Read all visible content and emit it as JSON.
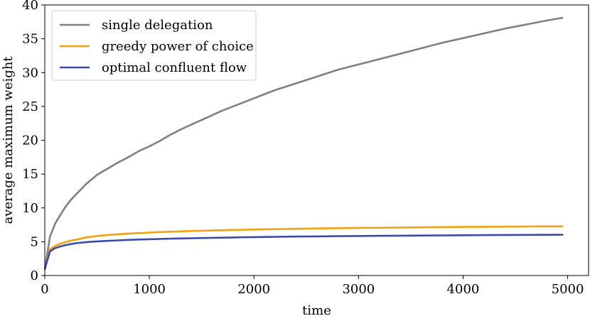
{
  "chart_data": {
    "type": "line",
    "xlabel": "time",
    "ylabel": "average maximum weight",
    "xlim": [
      0,
      5200
    ],
    "ylim": [
      0,
      40
    ],
    "xticks": [
      0,
      1000,
      2000,
      3000,
      4000,
      5000
    ],
    "yticks": [
      0,
      5,
      10,
      15,
      20,
      25,
      30,
      35,
      40
    ],
    "grid": false,
    "legend_position": "top-left",
    "x": [
      1,
      50,
      100,
      150,
      200,
      250,
      300,
      400,
      500,
      600,
      700,
      800,
      900,
      1000,
      1100,
      1200,
      1300,
      1400,
      1500,
      1600,
      1700,
      1800,
      1900,
      2000,
      2200,
      2400,
      2600,
      2800,
      3000,
      3200,
      3400,
      3600,
      3800,
      4000,
      4200,
      4400,
      4600,
      4800,
      4950
    ],
    "series": [
      {
        "name": "single delegation",
        "color": "#808080",
        "values": [
          1.0,
          5.8,
          7.7,
          9.0,
          10.2,
          11.2,
          12.0,
          13.6,
          14.9,
          15.8,
          16.7,
          17.5,
          18.4,
          19.1,
          19.9,
          20.8,
          21.6,
          22.3,
          23.0,
          23.7,
          24.4,
          25.0,
          25.6,
          26.2,
          27.4,
          28.4,
          29.4,
          30.4,
          31.2,
          32.0,
          32.8,
          33.6,
          34.4,
          35.1,
          35.8,
          36.5,
          37.1,
          37.7,
          38.1
        ]
      },
      {
        "name": "greedy power of choice",
        "color": "#f5a00f",
        "values": [
          1.0,
          3.9,
          4.4,
          4.7,
          4.95,
          5.15,
          5.3,
          5.65,
          5.85,
          6.0,
          6.1,
          6.2,
          6.28,
          6.35,
          6.42,
          6.48,
          6.53,
          6.58,
          6.62,
          6.66,
          6.7,
          6.74,
          6.77,
          6.8,
          6.86,
          6.91,
          6.96,
          7.0,
          7.04,
          7.07,
          7.1,
          7.13,
          7.16,
          7.18,
          7.2,
          7.22,
          7.24,
          7.26,
          7.27
        ]
      },
      {
        "name": "optimal confluent flow",
        "color": "#3a4aaa",
        "values": [
          1.0,
          3.6,
          4.05,
          4.3,
          4.5,
          4.65,
          4.78,
          4.95,
          5.05,
          5.12,
          5.2,
          5.27,
          5.32,
          5.37,
          5.41,
          5.45,
          5.48,
          5.51,
          5.54,
          5.57,
          5.6,
          5.63,
          5.66,
          5.68,
          5.72,
          5.76,
          5.79,
          5.82,
          5.85,
          5.87,
          5.89,
          5.91,
          5.93,
          5.95,
          5.97,
          5.99,
          6.01,
          6.02,
          6.03
        ]
      }
    ]
  }
}
